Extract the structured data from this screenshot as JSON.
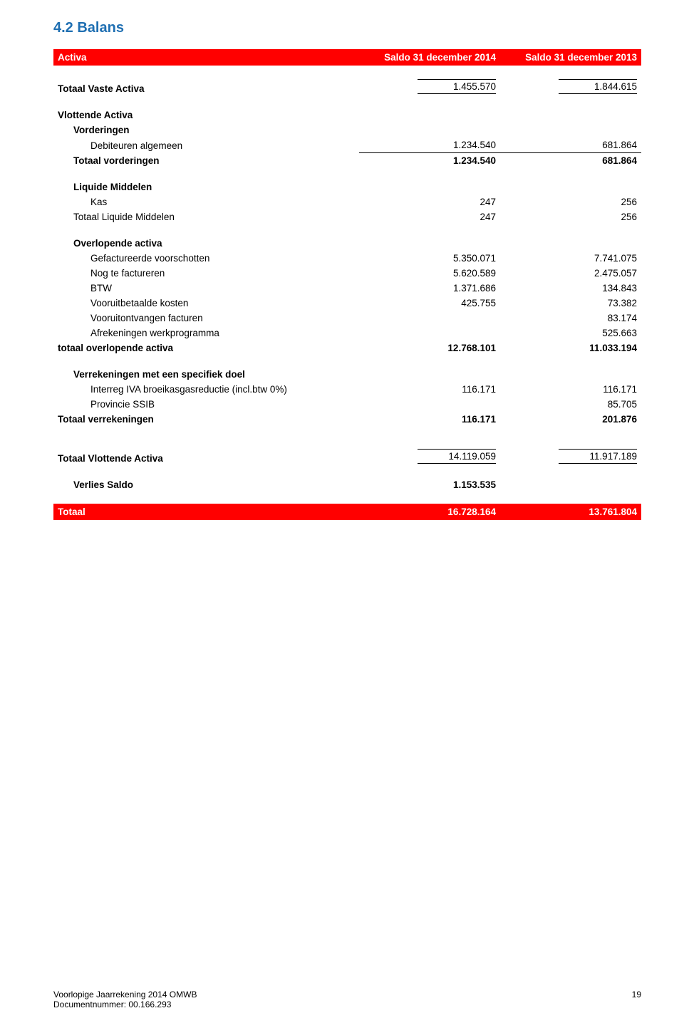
{
  "colors": {
    "title": "#1f6fb2",
    "bar_bg": "#ff0000",
    "bar_fg": "#ffffff",
    "text": "#000000",
    "page_bg": "#ffffff"
  },
  "section_title": "4.2 Balans",
  "header": {
    "label": "Activa",
    "col1": "Saldo 31 december 2014",
    "col2": "Saldo 31 december 2013"
  },
  "vaste_activa": {
    "label": "Totaal Vaste Activa",
    "v1": "1.455.570",
    "v2": "1.844.615"
  },
  "vlottende_heading": "Vlottende Activa",
  "vorderingen": {
    "heading": "Vorderingen",
    "rows": [
      {
        "label": "Debiteuren algemeen",
        "v1": "1.234.540",
        "v2": "681.864"
      }
    ],
    "total": {
      "label": "Totaal vorderingen",
      "v1": "1.234.540",
      "v2": "681.864"
    }
  },
  "liquide": {
    "heading": "Liquide Middelen",
    "rows": [
      {
        "label": "Kas",
        "v1": "247",
        "v2": "256"
      }
    ],
    "total": {
      "label": "Totaal Liquide Middelen",
      "v1": "247",
      "v2": "256"
    }
  },
  "overlopende": {
    "heading": "Overlopende activa",
    "rows": [
      {
        "label": "Gefactureerde voorschotten",
        "v1": "5.350.071",
        "v2": "7.741.075"
      },
      {
        "label": "Nog te factureren",
        "v1": "5.620.589",
        "v2": "2.475.057"
      },
      {
        "label": "BTW",
        "v1": "1.371.686",
        "v2": "134.843"
      },
      {
        "label": "Vooruitbetaalde kosten",
        "v1": "425.755",
        "v2": "73.382"
      },
      {
        "label": "Vooruitontvangen facturen",
        "v1": "",
        "v2": "83.174"
      },
      {
        "label": "Afrekeningen werkprogramma",
        "v1": "",
        "v2": "525.663"
      }
    ],
    "total": {
      "label": "totaal overlopende activa",
      "v1": "12.768.101",
      "v2": "11.033.194"
    }
  },
  "verrekeningen": {
    "heading": "Verrekeningen met een specifiek doel",
    "rows": [
      {
        "label": "Interreg IVA broeikasgasreductie (incl.btw 0%)",
        "v1": "116.171",
        "v2": "116.171"
      },
      {
        "label": "Provincie SSIB",
        "v1": "",
        "v2": "85.705"
      }
    ],
    "total": {
      "label": "Totaal verrekeningen",
      "v1": "116.171",
      "v2": "201.876"
    }
  },
  "vlottende_total": {
    "label": "Totaal Vlottende Activa",
    "v1": "14.119.059",
    "v2": "11.917.189"
  },
  "verlies": {
    "label": "Verlies Saldo",
    "v1": "1.153.535",
    "v2": ""
  },
  "grand_total": {
    "label": "Totaal",
    "v1": "16.728.164",
    "v2": "13.761.804"
  },
  "footer": {
    "line1": "Voorlopige Jaarrekening 2014 OMWB",
    "line2": "Documentnummer: 00.166.293",
    "page": "19"
  }
}
